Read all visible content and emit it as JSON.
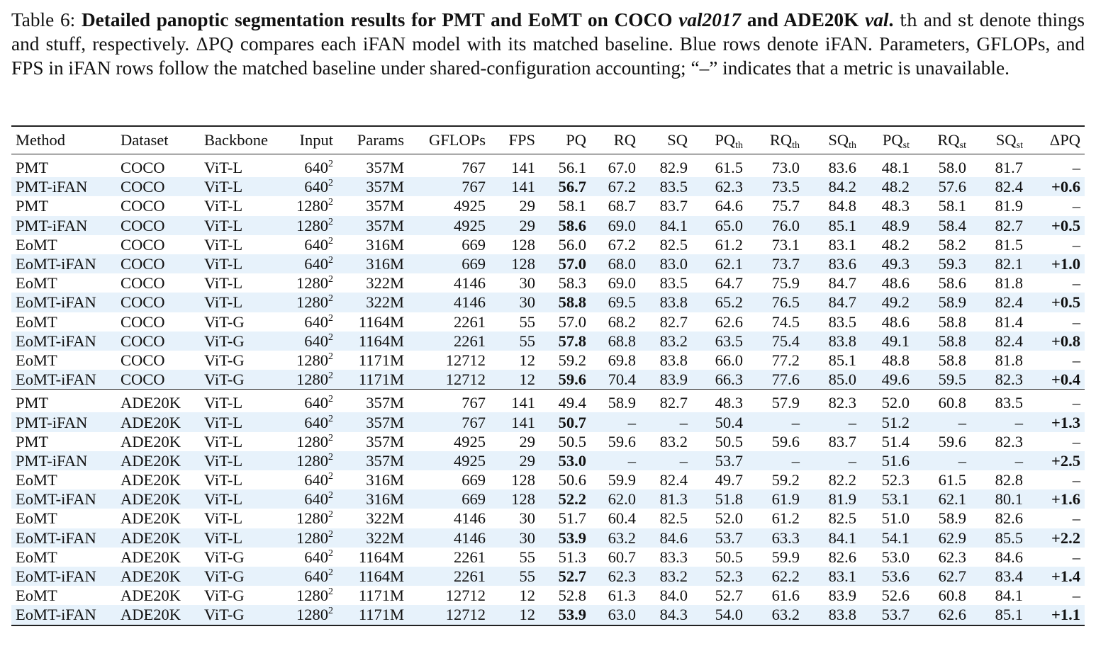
{
  "caption": {
    "label": "Table 6: ",
    "title_part1": "Detailed panoptic segmentation results for PMT and EoMT on COCO ",
    "title_italic1": "val2017",
    "title_part2": " and ADE20K ",
    "title_italic2": "val",
    "title_end": ".",
    "sym_th": "th",
    "text1": " and ",
    "sym_st": "st",
    "text2": " denote things and stuff, respectively. ",
    "sym_dpq": "ΔPQ",
    "text3": " compares each iFAN model with its matched baseline. Blue rows denote iFAN. Parameters, GFLOPs, and FPS in iFAN rows follow the matched baseline under shared-configuration accounting; “–” indicates that a metric is unavailable."
  },
  "headers": {
    "method": "Method",
    "dataset": "Dataset",
    "backbone": "Backbone",
    "input": "Input",
    "params": "Params",
    "gflops": "GFLOPs",
    "fps": "FPS",
    "pq": "PQ",
    "rq": "RQ",
    "sq": "SQ",
    "pq_th": "PQ",
    "rq_th": "RQ",
    "sq_th": "SQ",
    "pq_st": "PQ",
    "rq_st": "RQ",
    "sq_st": "SQ",
    "sub_th": "th",
    "sub_st": "st",
    "dpq": "ΔPQ"
  },
  "coco_rows": [
    {
      "method": "PMT",
      "dataset": "COCO",
      "backbone": "ViT-L",
      "input": "640",
      "params": "357M",
      "gflops": "767",
      "fps": "141",
      "pq": "56.1",
      "rq": "67.0",
      "sq": "82.9",
      "pq_th": "61.5",
      "rq_th": "73.0",
      "sq_th": "83.6",
      "pq_st": "48.1",
      "rq_st": "58.0",
      "sq_st": "81.7",
      "dpq": "–",
      "ifan": false
    },
    {
      "method": "PMT-iFAN",
      "dataset": "COCO",
      "backbone": "ViT-L",
      "input": "640",
      "params": "357M",
      "gflops": "767",
      "fps": "141",
      "pq": "56.7",
      "rq": "67.2",
      "sq": "83.5",
      "pq_th": "62.3",
      "rq_th": "73.5",
      "sq_th": "84.2",
      "pq_st": "48.2",
      "rq_st": "57.6",
      "sq_st": "82.4",
      "dpq": "+0.6",
      "ifan": true
    },
    {
      "method": "PMT",
      "dataset": "COCO",
      "backbone": "ViT-L",
      "input": "1280",
      "params": "357M",
      "gflops": "4925",
      "fps": "29",
      "pq": "58.1",
      "rq": "68.7",
      "sq": "83.7",
      "pq_th": "64.6",
      "rq_th": "75.7",
      "sq_th": "84.8",
      "pq_st": "48.3",
      "rq_st": "58.1",
      "sq_st": "81.9",
      "dpq": "–",
      "ifan": false
    },
    {
      "method": "PMT-iFAN",
      "dataset": "COCO",
      "backbone": "ViT-L",
      "input": "1280",
      "params": "357M",
      "gflops": "4925",
      "fps": "29",
      "pq": "58.6",
      "rq": "69.0",
      "sq": "84.1",
      "pq_th": "65.0",
      "rq_th": "76.0",
      "sq_th": "85.1",
      "pq_st": "48.9",
      "rq_st": "58.4",
      "sq_st": "82.7",
      "dpq": "+0.5",
      "ifan": true
    },
    {
      "method": "EoMT",
      "dataset": "COCO",
      "backbone": "ViT-L",
      "input": "640",
      "params": "316M",
      "gflops": "669",
      "fps": "128",
      "pq": "56.0",
      "rq": "67.2",
      "sq": "82.5",
      "pq_th": "61.2",
      "rq_th": "73.1",
      "sq_th": "83.1",
      "pq_st": "48.2",
      "rq_st": "58.2",
      "sq_st": "81.5",
      "dpq": "–",
      "ifan": false
    },
    {
      "method": "EoMT-iFAN",
      "dataset": "COCO",
      "backbone": "ViT-L",
      "input": "640",
      "params": "316M",
      "gflops": "669",
      "fps": "128",
      "pq": "57.0",
      "rq": "68.0",
      "sq": "83.0",
      "pq_th": "62.1",
      "rq_th": "73.7",
      "sq_th": "83.6",
      "pq_st": "49.3",
      "rq_st": "59.3",
      "sq_st": "82.1",
      "dpq": "+1.0",
      "ifan": true
    },
    {
      "method": "EoMT",
      "dataset": "COCO",
      "backbone": "ViT-L",
      "input": "1280",
      "params": "322M",
      "gflops": "4146",
      "fps": "30",
      "pq": "58.3",
      "rq": "69.0",
      "sq": "83.5",
      "pq_th": "64.7",
      "rq_th": "75.9",
      "sq_th": "84.7",
      "pq_st": "48.6",
      "rq_st": "58.6",
      "sq_st": "81.8",
      "dpq": "–",
      "ifan": false
    },
    {
      "method": "EoMT-iFAN",
      "dataset": "COCO",
      "backbone": "ViT-L",
      "input": "1280",
      "params": "322M",
      "gflops": "4146",
      "fps": "30",
      "pq": "58.8",
      "rq": "69.5",
      "sq": "83.8",
      "pq_th": "65.2",
      "rq_th": "76.5",
      "sq_th": "84.7",
      "pq_st": "49.2",
      "rq_st": "58.9",
      "sq_st": "82.4",
      "dpq": "+0.5",
      "ifan": true
    },
    {
      "method": "EoMT",
      "dataset": "COCO",
      "backbone": "ViT-G",
      "input": "640",
      "params": "1164M",
      "gflops": "2261",
      "fps": "55",
      "pq": "57.0",
      "rq": "68.2",
      "sq": "82.7",
      "pq_th": "62.6",
      "rq_th": "74.5",
      "sq_th": "83.5",
      "pq_st": "48.6",
      "rq_st": "58.8",
      "sq_st": "81.4",
      "dpq": "–",
      "ifan": false
    },
    {
      "method": "EoMT-iFAN",
      "dataset": "COCO",
      "backbone": "ViT-G",
      "input": "640",
      "params": "1164M",
      "gflops": "2261",
      "fps": "55",
      "pq": "57.8",
      "rq": "68.8",
      "sq": "83.2",
      "pq_th": "63.5",
      "rq_th": "75.4",
      "sq_th": "83.8",
      "pq_st": "49.1",
      "rq_st": "58.8",
      "sq_st": "82.4",
      "dpq": "+0.8",
      "ifan": true
    },
    {
      "method": "EoMT",
      "dataset": "COCO",
      "backbone": "ViT-G",
      "input": "1280",
      "params": "1171M",
      "gflops": "12712",
      "fps": "12",
      "pq": "59.2",
      "rq": "69.8",
      "sq": "83.8",
      "pq_th": "66.0",
      "rq_th": "77.2",
      "sq_th": "85.1",
      "pq_st": "48.8",
      "rq_st": "58.8",
      "sq_st": "81.8",
      "dpq": "–",
      "ifan": false
    },
    {
      "method": "EoMT-iFAN",
      "dataset": "COCO",
      "backbone": "ViT-G",
      "input": "1280",
      "params": "1171M",
      "gflops": "12712",
      "fps": "12",
      "pq": "59.6",
      "rq": "70.4",
      "sq": "83.9",
      "pq_th": "66.3",
      "rq_th": "77.6",
      "sq_th": "85.0",
      "pq_st": "49.6",
      "rq_st": "59.5",
      "sq_st": "82.3",
      "dpq": "+0.4",
      "ifan": true
    }
  ],
  "ade_rows": [
    {
      "method": "PMT",
      "dataset": "ADE20K",
      "backbone": "ViT-L",
      "input": "640",
      "params": "357M",
      "gflops": "767",
      "fps": "141",
      "pq": "49.4",
      "rq": "58.9",
      "sq": "82.7",
      "pq_th": "48.3",
      "rq_th": "57.9",
      "sq_th": "82.3",
      "pq_st": "52.0",
      "rq_st": "60.8",
      "sq_st": "83.5",
      "dpq": "–",
      "ifan": false
    },
    {
      "method": "PMT-iFAN",
      "dataset": "ADE20K",
      "backbone": "ViT-L",
      "input": "640",
      "params": "357M",
      "gflops": "767",
      "fps": "141",
      "pq": "50.7",
      "rq": "–",
      "sq": "–",
      "pq_th": "50.4",
      "rq_th": "–",
      "sq_th": "–",
      "pq_st": "51.2",
      "rq_st": "–",
      "sq_st": "–",
      "dpq": "+1.3",
      "ifan": true
    },
    {
      "method": "PMT",
      "dataset": "ADE20K",
      "backbone": "ViT-L",
      "input": "1280",
      "params": "357M",
      "gflops": "4925",
      "fps": "29",
      "pq": "50.5",
      "rq": "59.6",
      "sq": "83.2",
      "pq_th": "50.5",
      "rq_th": "59.6",
      "sq_th": "83.7",
      "pq_st": "51.4",
      "rq_st": "59.6",
      "sq_st": "82.3",
      "dpq": "–",
      "ifan": false
    },
    {
      "method": "PMT-iFAN",
      "dataset": "ADE20K",
      "backbone": "ViT-L",
      "input": "1280",
      "params": "357M",
      "gflops": "4925",
      "fps": "29",
      "pq": "53.0",
      "rq": "–",
      "sq": "–",
      "pq_th": "53.7",
      "rq_th": "–",
      "sq_th": "–",
      "pq_st": "51.6",
      "rq_st": "–",
      "sq_st": "–",
      "dpq": "+2.5",
      "ifan": true
    },
    {
      "method": "EoMT",
      "dataset": "ADE20K",
      "backbone": "ViT-L",
      "input": "640",
      "params": "316M",
      "gflops": "669",
      "fps": "128",
      "pq": "50.6",
      "rq": "59.9",
      "sq": "82.4",
      "pq_th": "49.7",
      "rq_th": "59.2",
      "sq_th": "82.2",
      "pq_st": "52.3",
      "rq_st": "61.5",
      "sq_st": "82.8",
      "dpq": "–",
      "ifan": false
    },
    {
      "method": "EoMT-iFAN",
      "dataset": "ADE20K",
      "backbone": "ViT-L",
      "input": "640",
      "params": "316M",
      "gflops": "669",
      "fps": "128",
      "pq": "52.2",
      "rq": "62.0",
      "sq": "81.3",
      "pq_th": "51.8",
      "rq_th": "61.9",
      "sq_th": "81.9",
      "pq_st": "53.1",
      "rq_st": "62.1",
      "sq_st": "80.1",
      "dpq": "+1.6",
      "ifan": true
    },
    {
      "method": "EoMT",
      "dataset": "ADE20K",
      "backbone": "ViT-L",
      "input": "1280",
      "params": "322M",
      "gflops": "4146",
      "fps": "30",
      "pq": "51.7",
      "rq": "60.4",
      "sq": "82.5",
      "pq_th": "52.0",
      "rq_th": "61.2",
      "sq_th": "82.5",
      "pq_st": "51.0",
      "rq_st": "58.9",
      "sq_st": "82.6",
      "dpq": "–",
      "ifan": false
    },
    {
      "method": "EoMT-iFAN",
      "dataset": "ADE20K",
      "backbone": "ViT-L",
      "input": "1280",
      "params": "322M",
      "gflops": "4146",
      "fps": "30",
      "pq": "53.9",
      "rq": "63.2",
      "sq": "84.6",
      "pq_th": "53.7",
      "rq_th": "63.3",
      "sq_th": "84.1",
      "pq_st": "54.1",
      "rq_st": "62.9",
      "sq_st": "85.5",
      "dpq": "+2.2",
      "ifan": true
    },
    {
      "method": "EoMT",
      "dataset": "ADE20K",
      "backbone": "ViT-G",
      "input": "640",
      "params": "1164M",
      "gflops": "2261",
      "fps": "55",
      "pq": "51.3",
      "rq": "60.7",
      "sq": "83.3",
      "pq_th": "50.5",
      "rq_th": "59.9",
      "sq_th": "82.6",
      "pq_st": "53.0",
      "rq_st": "62.3",
      "sq_st": "84.6",
      "dpq": "–",
      "ifan": false
    },
    {
      "method": "EoMT-iFAN",
      "dataset": "ADE20K",
      "backbone": "ViT-G",
      "input": "640",
      "params": "1164M",
      "gflops": "2261",
      "fps": "55",
      "pq": "52.7",
      "rq": "62.3",
      "sq": "83.2",
      "pq_th": "52.3",
      "rq_th": "62.2",
      "sq_th": "83.1",
      "pq_st": "53.6",
      "rq_st": "62.7",
      "sq_st": "83.4",
      "dpq": "+1.4",
      "ifan": true
    },
    {
      "method": "EoMT",
      "dataset": "ADE20K",
      "backbone": "ViT-G",
      "input": "1280",
      "params": "1171M",
      "gflops": "12712",
      "fps": "12",
      "pq": "52.8",
      "rq": "61.3",
      "sq": "84.0",
      "pq_th": "52.7",
      "rq_th": "61.6",
      "sq_th": "83.9",
      "pq_st": "52.6",
      "rq_st": "60.8",
      "sq_st": "84.1",
      "dpq": "–",
      "ifan": false
    },
    {
      "method": "EoMT-iFAN",
      "dataset": "ADE20K",
      "backbone": "ViT-G",
      "input": "1280",
      "params": "1171M",
      "gflops": "12712",
      "fps": "12",
      "pq": "53.9",
      "rq": "63.0",
      "sq": "84.3",
      "pq_th": "54.0",
      "rq_th": "63.2",
      "sq_th": "83.8",
      "pq_st": "53.7",
      "rq_st": "62.6",
      "sq_st": "85.1",
      "dpq": "+1.1",
      "ifan": true
    }
  ],
  "colors": {
    "ifan_row_bg": "#e7f2fb"
  }
}
